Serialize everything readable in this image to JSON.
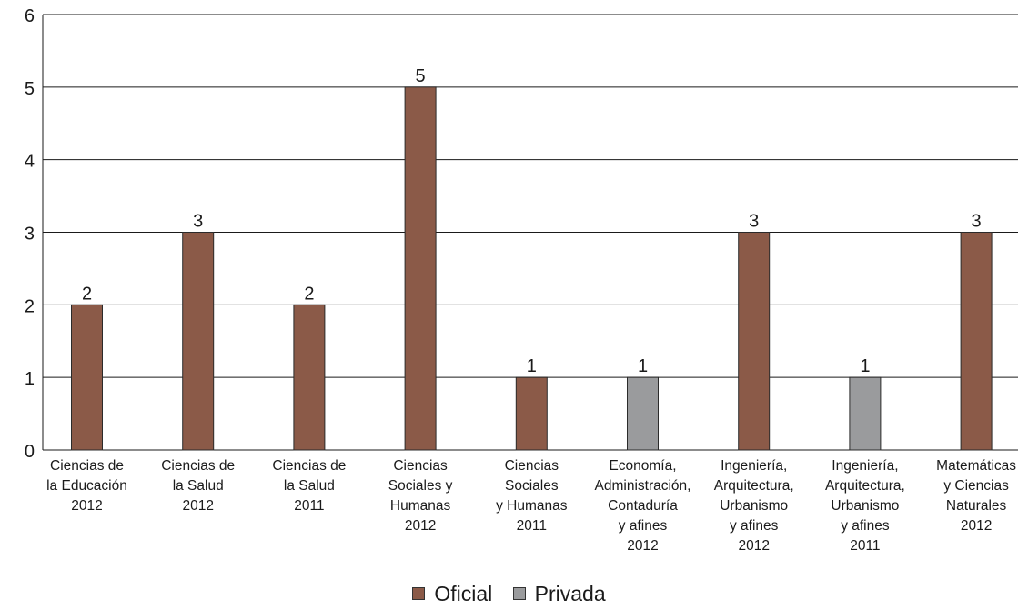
{
  "chart_data": {
    "type": "bar",
    "title": "",
    "xlabel": "",
    "ylabel": "",
    "ylim": [
      0,
      6
    ],
    "yticks": [
      "0",
      "1",
      "2",
      "3",
      "4",
      "5",
      "6"
    ],
    "grid": true,
    "legend_position": "bottom",
    "categories": [
      [
        "Ciencias de",
        "la Educación",
        "2012"
      ],
      [
        "Ciencias de",
        "la Salud",
        "2012"
      ],
      [
        "Ciencias de",
        "la Salud",
        "2011"
      ],
      [
        "Ciencias",
        "Sociales y",
        "Humanas",
        "2012"
      ],
      [
        "Ciencias",
        "Sociales",
        "y Humanas",
        "2011"
      ],
      [
        "Economía,",
        "Administración,",
        "Contaduría",
        "y afines",
        "2012"
      ],
      [
        "Ingeniería,",
        "Arquitectura,",
        "Urbanismo",
        "y afines",
        "2012"
      ],
      [
        "Ingeniería,",
        "Arquitectura,",
        "Urbanismo",
        "y afines",
        "2011"
      ],
      [
        "Matemáticas",
        "y Ciencias",
        "Naturales",
        "2012"
      ]
    ],
    "bars": [
      {
        "value": 2,
        "label": "2",
        "series": "Oficial"
      },
      {
        "value": 3,
        "label": "3",
        "series": "Oficial"
      },
      {
        "value": 2,
        "label": "2",
        "series": "Oficial"
      },
      {
        "value": 5,
        "label": "5",
        "series": "Oficial"
      },
      {
        "value": 1,
        "label": "1",
        "series": "Oficial"
      },
      {
        "value": 1,
        "label": "1",
        "series": "Privada"
      },
      {
        "value": 3,
        "label": "3",
        "series": "Oficial"
      },
      {
        "value": 1,
        "label": "1",
        "series": "Privada"
      },
      {
        "value": 3,
        "label": "3",
        "series": "Oficial"
      }
    ],
    "series": [
      {
        "name": "Oficial",
        "color": "#8b5a48"
      },
      {
        "name": "Privada",
        "color": "#9a9b9d"
      }
    ]
  }
}
